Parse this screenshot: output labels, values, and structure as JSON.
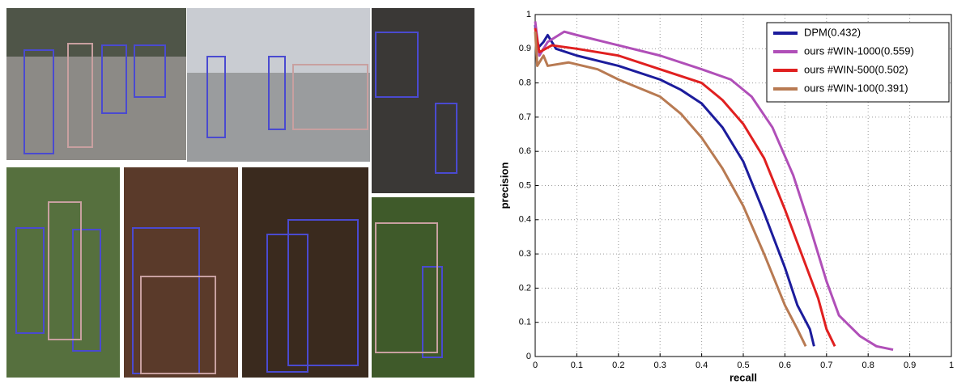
{
  "chart_data": {
    "type": "line",
    "xlabel": "recall",
    "ylabel": "precision",
    "xlim": [
      0,
      1
    ],
    "ylim": [
      0,
      1
    ],
    "xticks": [
      0,
      0.1,
      0.2,
      0.3,
      0.4,
      0.5,
      0.6,
      0.7,
      0.8,
      0.9,
      1
    ],
    "yticks": [
      0,
      0.1,
      0.2,
      0.3,
      0.4,
      0.5,
      0.6,
      0.7,
      0.8,
      0.9,
      1
    ],
    "grid": true,
    "legend": "upper right",
    "series": [
      {
        "name": "DPM(0.432)",
        "color": "#1c1c9c",
        "x": [
          0,
          0.005,
          0.02,
          0.03,
          0.05,
          0.1,
          0.2,
          0.3,
          0.35,
          0.4,
          0.45,
          0.5,
          0.55,
          0.6,
          0.63,
          0.66,
          0.67
        ],
        "values": [
          0.97,
          0.9,
          0.92,
          0.94,
          0.9,
          0.88,
          0.85,
          0.81,
          0.78,
          0.74,
          0.67,
          0.57,
          0.42,
          0.26,
          0.15,
          0.08,
          0.03
        ]
      },
      {
        "name": "ours #WIN-1000(0.559)",
        "color": "#b04fb8",
        "x": [
          0,
          0.01,
          0.03,
          0.07,
          0.1,
          0.2,
          0.3,
          0.4,
          0.47,
          0.52,
          0.57,
          0.62,
          0.66,
          0.7,
          0.73,
          0.78,
          0.82,
          0.86
        ],
        "values": [
          0.98,
          0.88,
          0.92,
          0.95,
          0.94,
          0.91,
          0.88,
          0.84,
          0.81,
          0.76,
          0.67,
          0.53,
          0.38,
          0.22,
          0.12,
          0.06,
          0.03,
          0.02
        ]
      },
      {
        "name": "ours #WIN-500(0.502)",
        "color": "#e02020",
        "x": [
          0,
          0.01,
          0.04,
          0.1,
          0.2,
          0.3,
          0.4,
          0.45,
          0.5,
          0.55,
          0.6,
          0.64,
          0.68,
          0.7,
          0.72
        ],
        "values": [
          0.96,
          0.89,
          0.91,
          0.9,
          0.88,
          0.84,
          0.8,
          0.75,
          0.68,
          0.58,
          0.43,
          0.3,
          0.17,
          0.08,
          0.03
        ]
      },
      {
        "name": "ours #WIN-100(0.391)",
        "color": "#b87a52",
        "x": [
          0,
          0.005,
          0.02,
          0.03,
          0.08,
          0.15,
          0.2,
          0.3,
          0.35,
          0.4,
          0.45,
          0.5,
          0.55,
          0.6,
          0.63,
          0.65
        ],
        "values": [
          0.95,
          0.85,
          0.88,
          0.85,
          0.86,
          0.84,
          0.81,
          0.76,
          0.71,
          0.64,
          0.55,
          0.44,
          0.3,
          0.15,
          0.08,
          0.03
        ]
      }
    ]
  }
}
